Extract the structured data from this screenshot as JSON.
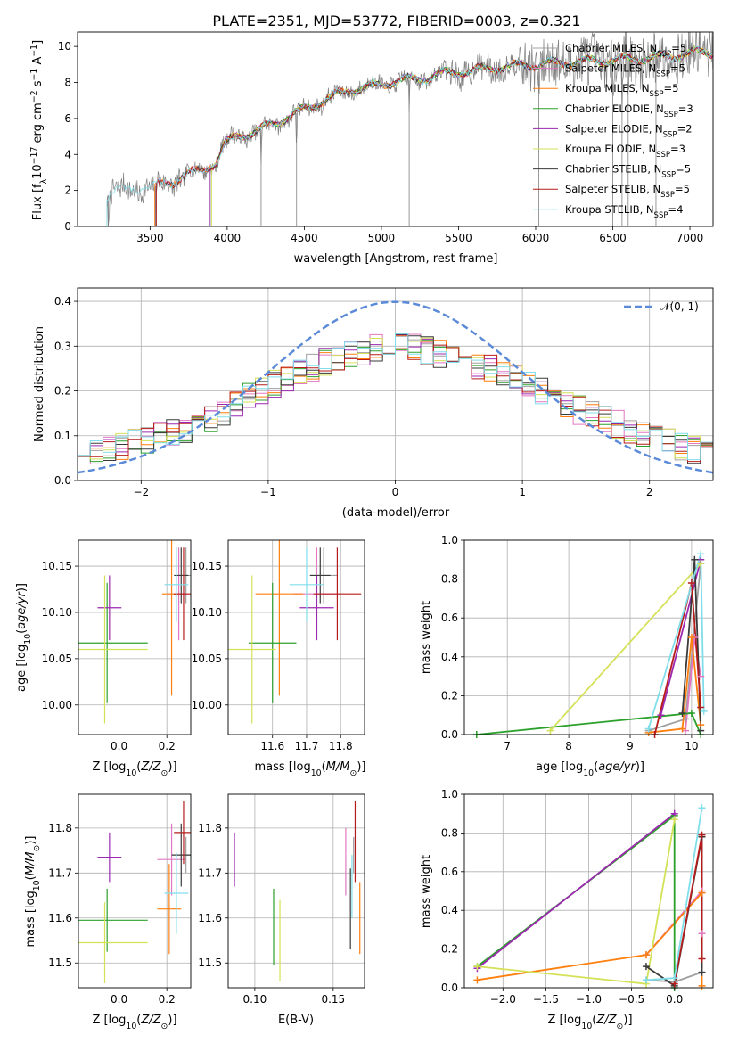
{
  "figure": {
    "title": "PLATE=2351, MJD=53772, FIBERID=0003, z=0.321"
  },
  "models": [
    {
      "name": "Chabrier MILES",
      "nssp": "5",
      "color": "#a0a0a0"
    },
    {
      "name": "Salpeter MILES",
      "nssp": "5",
      "color": "#e377c2"
    },
    {
      "name": "Kroupa MILES",
      "nssp": "5",
      "color": "#ff7f0e"
    },
    {
      "name": "Chabrier ELODIE",
      "nssp": "3",
      "color": "#2ca02c"
    },
    {
      "name": "Salpeter ELODIE",
      "nssp": "2",
      "color": "#9c27b0"
    },
    {
      "name": "Kroupa ELODIE",
      "nssp": "3",
      "color": "#d4e157"
    },
    {
      "name": "Chabrier STELIB",
      "nssp": "5",
      "color": "#3a3a3a"
    },
    {
      "name": "Salpeter STELIB",
      "nssp": "5",
      "color": "#b71c1c"
    },
    {
      "name": "Kroupa STELIB",
      "nssp": "4",
      "color": "#80deea"
    }
  ],
  "chart_data": [
    {
      "id": "spectrum",
      "type": "line",
      "title": "PLATE=2351, MJD=53772, FIBERID=0003, z=0.321",
      "xlabel": "wavelength [Angstrom, rest frame]",
      "ylabel": "Flux [f_λ 10^-17 erg cm^-2 s^-1 A^-1]",
      "xlim": [
        3030,
        7150
      ],
      "ylim": [
        0,
        10.8
      ],
      "xticks": [
        3500,
        4000,
        4500,
        5000,
        5500,
        6000,
        6500,
        7000
      ],
      "yticks": [
        0,
        2,
        4,
        6,
        8,
        10
      ],
      "grid": false,
      "legend": "top-right",
      "data_color": "#808080",
      "continuum": {
        "x": [
          3220,
          3300,
          3400,
          3500,
          3550,
          3650,
          3750,
          3850,
          3930,
          3980,
          4050,
          4200,
          4350,
          4500,
          4650,
          4800,
          4950,
          5100,
          5250,
          5400,
          5550,
          5700,
          5850,
          6000,
          6200,
          6400,
          6600,
          6800,
          7000,
          7100
        ],
        "y": [
          1.7,
          2.0,
          2.1,
          2.1,
          2.3,
          2.5,
          2.9,
          3.2,
          3.6,
          4.5,
          5.0,
          5.3,
          5.9,
          6.5,
          7.1,
          7.6,
          7.8,
          8.1,
          8.2,
          8.5,
          8.6,
          8.8,
          8.9,
          9.0,
          9.1,
          9.2,
          9.3,
          9.4,
          9.6,
          9.7
        ]
      },
      "data_start": 3220,
      "model_starts": [
        3540,
        3540,
        3530,
        3890,
        3890,
        3900,
        3540,
        3540,
        3220
      ],
      "absorption_lines": [
        3230,
        3535,
        4220,
        4450,
        5180,
        6020,
        6500,
        6560,
        6600,
        6650,
        6780
      ]
    },
    {
      "id": "residuals",
      "type": "histogram",
      "xlabel": "(data-model)/error",
      "ylabel": "Normed distribution",
      "xlim": [
        -2.5,
        2.5
      ],
      "ylim": [
        0,
        0.43
      ],
      "xticks": [
        -2,
        -1,
        0,
        1,
        2
      ],
      "yticks": [
        0.0,
        0.1,
        0.2,
        0.3,
        0.4
      ],
      "grid": true,
      "legend": "top-right",
      "reference": {
        "label": "𝒩(0, 1)",
        "mean": 0,
        "sigma": 1,
        "color": "#5b8ad8"
      },
      "bin_width": 0.1,
      "envelope": {
        "x": [
          -2.5,
          -2.0,
          -1.5,
          -1.0,
          -0.5,
          0.0,
          0.5,
          1.0,
          1.5,
          2.0,
          2.5
        ],
        "y": [
          0.06,
          0.085,
          0.13,
          0.21,
          0.27,
          0.305,
          0.275,
          0.22,
          0.15,
          0.1,
          0.055
        ]
      }
    },
    {
      "id": "age-vs-Z",
      "type": "scatter",
      "xlabel": "Z [log10(Z/Z⊙)]",
      "ylabel": "age [log10(age/yr)]",
      "xlim": [
        -0.17,
        0.3
      ],
      "ylim": [
        9.968,
        10.178
      ],
      "xticks": [
        0.0,
        0.2
      ],
      "yticks": [
        10.0,
        10.05,
        10.1,
        10.15
      ],
      "grid": true,
      "points": [
        {
          "x": 0.28,
          "y": 10.14,
          "xerr": 0.03,
          "yerr": 0.03
        },
        {
          "x": 0.25,
          "y": 10.12,
          "xerr": 0.04,
          "yerr": 0.05
        },
        {
          "x": 0.22,
          "y": 10.12,
          "xerr": 0.04,
          "yerr": 0.11
        },
        {
          "x": -0.05,
          "y": 10.067,
          "xerr": 0.17,
          "yerr": 0.065
        },
        {
          "x": -0.04,
          "y": 10.105,
          "xerr": 0.05,
          "yerr": 0.035
        },
        {
          "x": -0.06,
          "y": 10.06,
          "xerr": 0.18,
          "yerr": 0.08
        },
        {
          "x": 0.26,
          "y": 10.14,
          "xerr": 0.03,
          "yerr": 0.03
        },
        {
          "x": 0.27,
          "y": 10.12,
          "xerr": 0.04,
          "yerr": 0.05
        },
        {
          "x": 0.24,
          "y": 10.13,
          "xerr": 0.05,
          "yerr": 0.04
        }
      ]
    },
    {
      "id": "age-vs-mass",
      "type": "scatter",
      "xlabel": "mass [log10(M/M⊙)]",
      "ylabel": "",
      "xlim": [
        11.47,
        11.87
      ],
      "ylim": [
        9.968,
        10.178
      ],
      "xticks": [
        11.6,
        11.7,
        11.8
      ],
      "yticks": [
        10.0,
        10.05,
        10.1,
        10.15
      ],
      "grid": true,
      "points": [
        {
          "x": 11.75,
          "y": 10.14,
          "xerr": 0.04,
          "yerr": 0.03
        },
        {
          "x": 11.73,
          "y": 10.12,
          "xerr": 0.07,
          "yerr": 0.05
        },
        {
          "x": 11.62,
          "y": 10.12,
          "xerr": 0.07,
          "yerr": 0.11
        },
        {
          "x": 11.6,
          "y": 10.067,
          "xerr": 0.07,
          "yerr": 0.065
        },
        {
          "x": 11.73,
          "y": 10.105,
          "xerr": 0.05,
          "yerr": 0.035
        },
        {
          "x": 11.54,
          "y": 10.06,
          "xerr": 0.07,
          "yerr": 0.08
        },
        {
          "x": 11.74,
          "y": 10.14,
          "xerr": 0.03,
          "yerr": 0.03
        },
        {
          "x": 11.79,
          "y": 10.12,
          "xerr": 0.07,
          "yerr": 0.05
        },
        {
          "x": 11.7,
          "y": 10.13,
          "xerr": 0.05,
          "yerr": 0.04
        }
      ]
    },
    {
      "id": "weight-vs-age",
      "type": "line",
      "xlabel": "age [log10(age/yr)]",
      "ylabel": "mass weight",
      "xlim": [
        6.3,
        10.35
      ],
      "ylim": [
        0,
        1
      ],
      "xticks": [
        7,
        8,
        9,
        10
      ],
      "yticks": [
        0.0,
        0.2,
        0.4,
        0.6,
        0.8,
        1.0
      ],
      "grid": true,
      "series": [
        {
          "x": [
            9.3,
            9.9,
            10.15
          ],
          "y": [
            0.02,
            0.08,
            0.88
          ]
        },
        {
          "x": [
            9.9,
            10.05,
            10.15
          ],
          "y": [
            0.02,
            0.5,
            0.3
          ]
        },
        {
          "x": [
            9.3,
            9.85,
            10.0,
            10.15
          ],
          "y": [
            0.01,
            0.03,
            0.5,
            0.05
          ]
        },
        {
          "x": [
            6.5,
            10.0,
            10.15
          ],
          "y": [
            0.0,
            0.11,
            0.0
          ]
        },
        {
          "x": [
            9.5,
            10.15
          ],
          "y": [
            0.1,
            0.9
          ]
        },
        {
          "x": [
            7.7,
            10.15
          ],
          "y": [
            0.02,
            0.88
          ]
        },
        {
          "x": [
            9.85,
            10.05,
            10.15
          ],
          "y": [
            0.11,
            0.9,
            0.02
          ]
        },
        {
          "x": [
            9.4,
            10.0,
            10.15
          ],
          "y": [
            0.0,
            0.78,
            0.14
          ]
        },
        {
          "x": [
            9.3,
            10.15,
            10.2
          ],
          "y": [
            0.03,
            0.93,
            0.12
          ]
        }
      ]
    },
    {
      "id": "mass-vs-Z",
      "type": "scatter",
      "xlabel": "Z [log10(Z/Z⊙)]",
      "ylabel": "mass [log10(M/M⊙)]",
      "xlim": [
        -0.17,
        0.3
      ],
      "ylim": [
        11.445,
        11.875
      ],
      "xticks": [
        0.0,
        0.2
      ],
      "yticks": [
        11.5,
        11.6,
        11.7,
        11.8
      ],
      "grid": true,
      "points": [
        {
          "x": 0.28,
          "y": 11.74,
          "xerr": 0.03,
          "yerr": 0.04
        },
        {
          "x": 0.22,
          "y": 11.73,
          "xerr": 0.06,
          "yerr": 0.08
        },
        {
          "x": 0.21,
          "y": 11.62,
          "xerr": 0.05,
          "yerr": 0.1
        },
        {
          "x": -0.05,
          "y": 11.595,
          "xerr": 0.17,
          "yerr": 0.07
        },
        {
          "x": -0.04,
          "y": 11.735,
          "xerr": 0.05,
          "yerr": 0.055
        },
        {
          "x": -0.06,
          "y": 11.545,
          "xerr": 0.18,
          "yerr": 0.09
        },
        {
          "x": 0.26,
          "y": 11.74,
          "xerr": 0.04,
          "yerr": 0.07
        },
        {
          "x": 0.27,
          "y": 11.79,
          "xerr": 0.04,
          "yerr": 0.07
        },
        {
          "x": 0.24,
          "y": 11.655,
          "xerr": 0.05,
          "yerr": 0.09
        }
      ]
    },
    {
      "id": "mass-vs-ebv",
      "type": "scatter",
      "xlabel": "E(B-V)",
      "ylabel": "",
      "xlim": [
        0.083,
        0.17
      ],
      "ylim": [
        11.445,
        11.875
      ],
      "xticks": [
        0.1,
        0.15
      ],
      "yticks": [
        11.5,
        11.6,
        11.7,
        11.8
      ],
      "grid": true,
      "points": [
        {
          "x": 0.163,
          "y": 11.74,
          "xerr": 0,
          "yerr": 0.04
        },
        {
          "x": 0.158,
          "y": 11.725,
          "xerr": 0,
          "yerr": 0.075
        },
        {
          "x": 0.167,
          "y": 11.6,
          "xerr": 0,
          "yerr": 0.08
        },
        {
          "x": 0.112,
          "y": 11.58,
          "xerr": 0,
          "yerr": 0.085
        },
        {
          "x": 0.087,
          "y": 11.73,
          "xerr": 0,
          "yerr": 0.06
        },
        {
          "x": 0.116,
          "y": 11.55,
          "xerr": 0,
          "yerr": 0.09
        },
        {
          "x": 0.161,
          "y": 11.62,
          "xerr": 0,
          "yerr": 0.09
        },
        {
          "x": 0.164,
          "y": 11.77,
          "xerr": 0,
          "yerr": 0.09
        },
        {
          "x": 0.162,
          "y": 11.67,
          "xerr": 0,
          "yerr": 0.07
        }
      ]
    },
    {
      "id": "weight-vs-Z",
      "type": "line",
      "xlabel": "Z [log10(Z/Z⊙)]",
      "ylabel": "mass weight",
      "xlim": [
        -2.45,
        0.45
      ],
      "ylim": [
        0,
        1
      ],
      "xticks": [
        -2.0,
        -1.5,
        -1.0,
        -0.5,
        0.0
      ],
      "yticks": [
        0.0,
        0.2,
        0.4,
        0.6,
        0.8,
        1.0
      ],
      "grid": true,
      "series": [
        {
          "x": [
            -0.33,
            0.0,
            0.32
          ],
          "y": [
            0.04,
            0.03,
            0.08
          ]
        },
        {
          "x": [
            -0.33,
            0.32,
            0.32
          ],
          "y": [
            0.17,
            0.5,
            0.28
          ]
        },
        {
          "x": [
            -2.3,
            -0.33,
            0.32,
            0.32
          ],
          "y": [
            0.04,
            0.17,
            0.49,
            0.01
          ]
        },
        {
          "x": [
            -2.3,
            0.0,
            0.0
          ],
          "y": [
            0.11,
            0.89,
            0.0
          ]
        },
        {
          "x": [
            -2.3,
            0.0
          ],
          "y": [
            0.1,
            0.9
          ]
        },
        {
          "x": [
            -2.3,
            -0.33,
            0.0
          ],
          "y": [
            0.11,
            0.02,
            0.87
          ]
        },
        {
          "x": [
            -0.33,
            0.0,
            0.32,
            0.32
          ],
          "y": [
            0.11,
            0.01,
            0.78,
            0.08
          ]
        },
        {
          "x": [
            0.0,
            0.32,
            0.32
          ],
          "y": [
            0.02,
            0.79,
            0.15
          ]
        },
        {
          "x": [
            -0.33,
            0.0,
            0.32
          ],
          "y": [
            0.04,
            0.05,
            0.93
          ]
        }
      ]
    }
  ]
}
